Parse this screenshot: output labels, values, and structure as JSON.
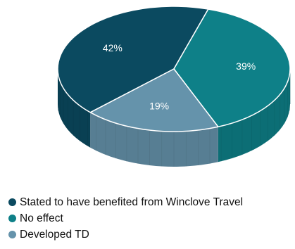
{
  "chart_data": {
    "type": "pie",
    "style": "3d",
    "title": "",
    "slices": [
      {
        "label": "Stated to have benefited from Winclove Travel",
        "value": 42,
        "display": "42%",
        "color": "#0b4a60"
      },
      {
        "label": "No effect",
        "value": 39,
        "display": "39%",
        "color": "#0e8088"
      },
      {
        "label": "Developed TD",
        "value": 19,
        "display": "19%",
        "color": "#6593ab"
      }
    ],
    "legend_position": "bottom-left"
  }
}
